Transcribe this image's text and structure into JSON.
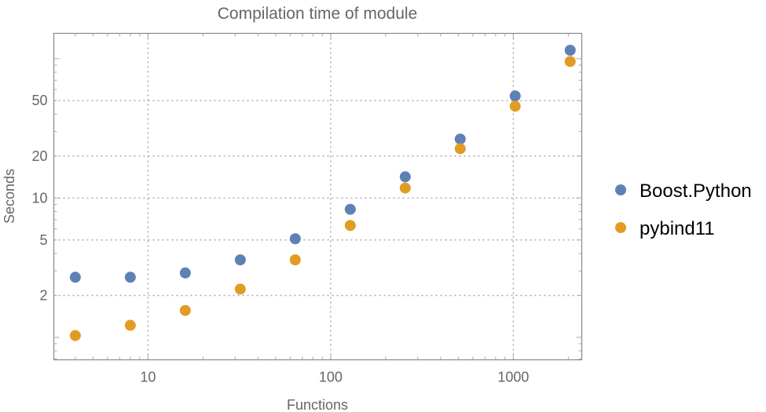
{
  "chart_data": {
    "type": "scatter",
    "title": "Compilation time of module",
    "xlabel": "Functions",
    "ylabel": "Seconds",
    "x_scale": "log",
    "y_scale": "log",
    "xlim": [
      3.05,
      2370
    ],
    "ylim": [
      0.69,
      152
    ],
    "x_ticks": [
      {
        "value": 10,
        "label": "10"
      },
      {
        "value": 100,
        "label": "100"
      },
      {
        "value": 1000,
        "label": "1000"
      }
    ],
    "y_ticks": [
      {
        "value": 2,
        "label": "2"
      },
      {
        "value": 5,
        "label": "5"
      },
      {
        "value": 10,
        "label": "10"
      },
      {
        "value": 20,
        "label": "20"
      },
      {
        "value": 50,
        "label": "50"
      }
    ],
    "grid": true,
    "legend_position": "right",
    "x": [
      4,
      8,
      16,
      32,
      64,
      128,
      256,
      512,
      1024,
      2048
    ],
    "series": [
      {
        "name": "Boost.Python",
        "color": "#5E81B5",
        "values": [
          2.7,
          2.7,
          2.9,
          3.6,
          5.1,
          8.3,
          14.2,
          26.5,
          54,
          115
        ]
      },
      {
        "name": "pybind11",
        "color": "#E19C24",
        "values": [
          1.03,
          1.22,
          1.56,
          2.22,
          3.6,
          6.35,
          11.8,
          22.6,
          45.6,
          95.5
        ]
      }
    ]
  }
}
